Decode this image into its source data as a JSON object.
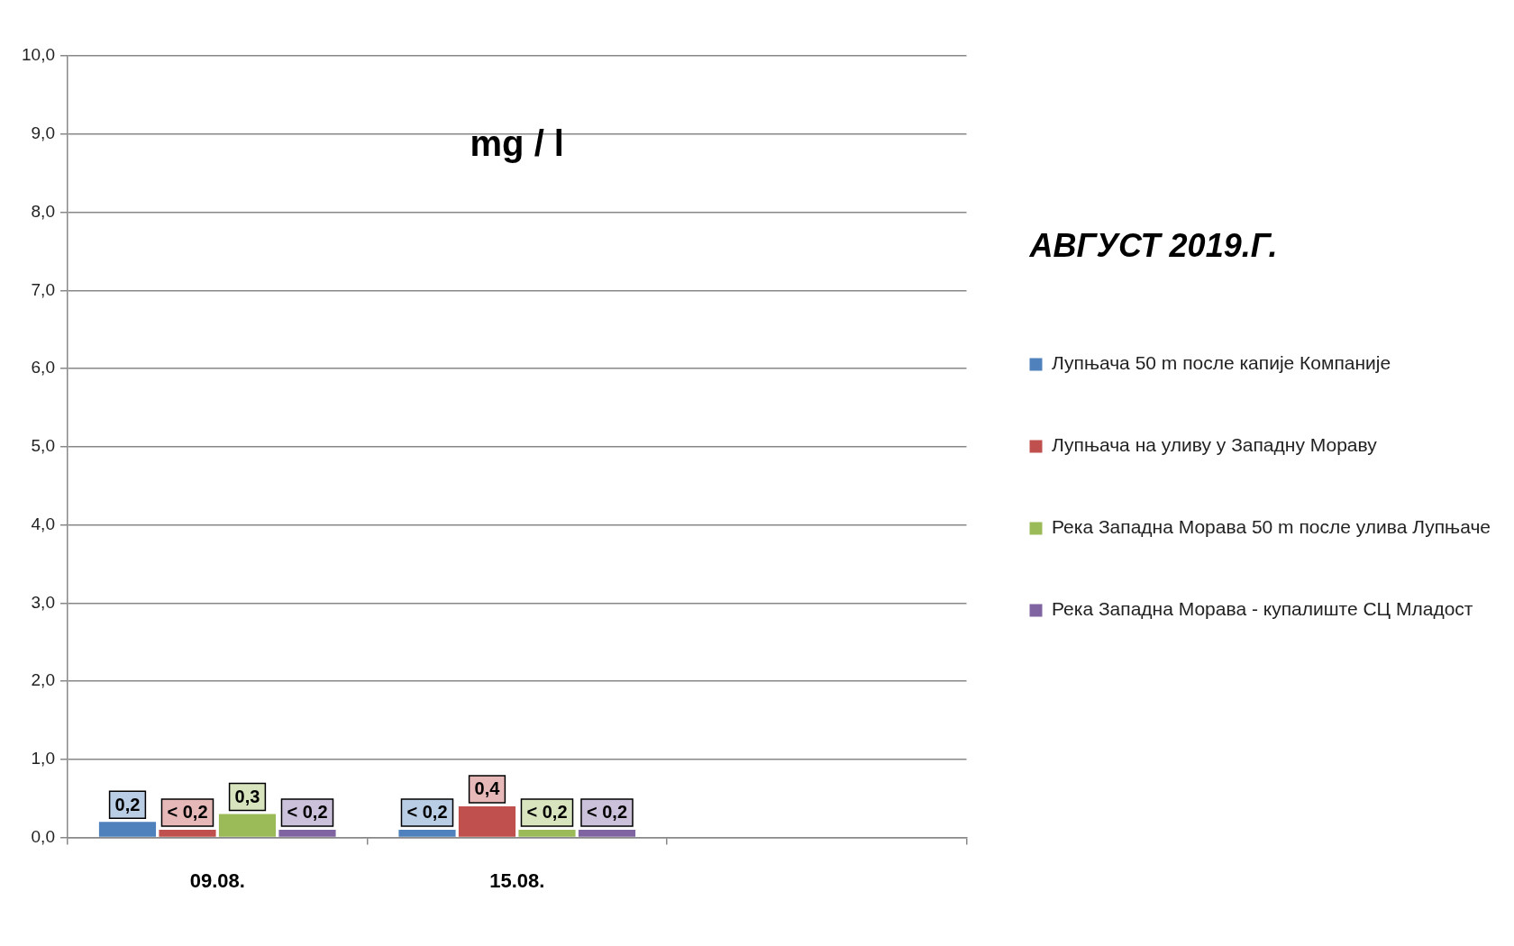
{
  "chart_data": {
    "type": "bar",
    "title": "mg / l",
    "subtitle": "АВГУСТ 2019.Г.",
    "categories": [
      "09.08.",
      "15.08.",
      null
    ],
    "series": [
      {
        "name": "Лупњача 50 m после капије Компаније",
        "color": "#4f81bd",
        "values": [
          0.2,
          0.1,
          null
        ],
        "value_labels": [
          "0,2",
          "< 0,2",
          null
        ]
      },
      {
        "name": "Лупњача на уливу у Западну Мораву",
        "color": "#c0504d",
        "values": [
          0.1,
          0.4,
          null
        ],
        "value_labels": [
          "< 0,2",
          "0,4",
          null
        ]
      },
      {
        "name": "Река Западна Морава 50 m после улива Лупњаче",
        "color": "#9bbb59",
        "values": [
          0.3,
          0.1,
          null
        ],
        "value_labels": [
          "0,3",
          "< 0,2",
          null
        ]
      },
      {
        "name": "Река Западна Морава - купалиште СЦ Младост",
        "color": "#8064a2",
        "values": [
          0.1,
          0.1,
          null
        ],
        "value_labels": [
          "< 0,2",
          "< 0,2",
          null
        ]
      }
    ],
    "ylim": [
      0,
      10
    ],
    "yticks": [
      {
        "value": 0,
        "label": "0,0"
      },
      {
        "value": 1,
        "label": "1,0"
      },
      {
        "value": 2,
        "label": "2,0"
      },
      {
        "value": 3,
        "label": "3,0"
      },
      {
        "value": 4,
        "label": "4,0"
      },
      {
        "value": 5,
        "label": "5,0"
      },
      {
        "value": 6,
        "label": "6,0"
      },
      {
        "value": 7,
        "label": "7,0"
      },
      {
        "value": 8,
        "label": "8,0"
      },
      {
        "value": 9,
        "label": "9,0"
      },
      {
        "value": 10,
        "label": "10,0"
      }
    ],
    "grid": "y",
    "legend": "right"
  }
}
